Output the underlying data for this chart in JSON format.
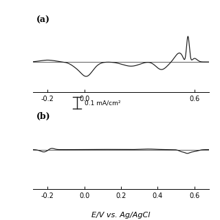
{
  "title_a": "(a)",
  "title_b": "(b)",
  "xlabel": "E/V vs. Ag/AgCl",
  "scale_label": "0.1 mA/cm²",
  "xlim": [
    -0.28,
    0.68
  ],
  "xticks_a": [
    -0.2,
    0.0,
    0.6
  ],
  "xticks_b": [
    -0.2,
    0.0,
    0.2,
    0.4,
    0.6
  ],
  "background_color": "#ffffff",
  "line_color": "#1a1a1a"
}
